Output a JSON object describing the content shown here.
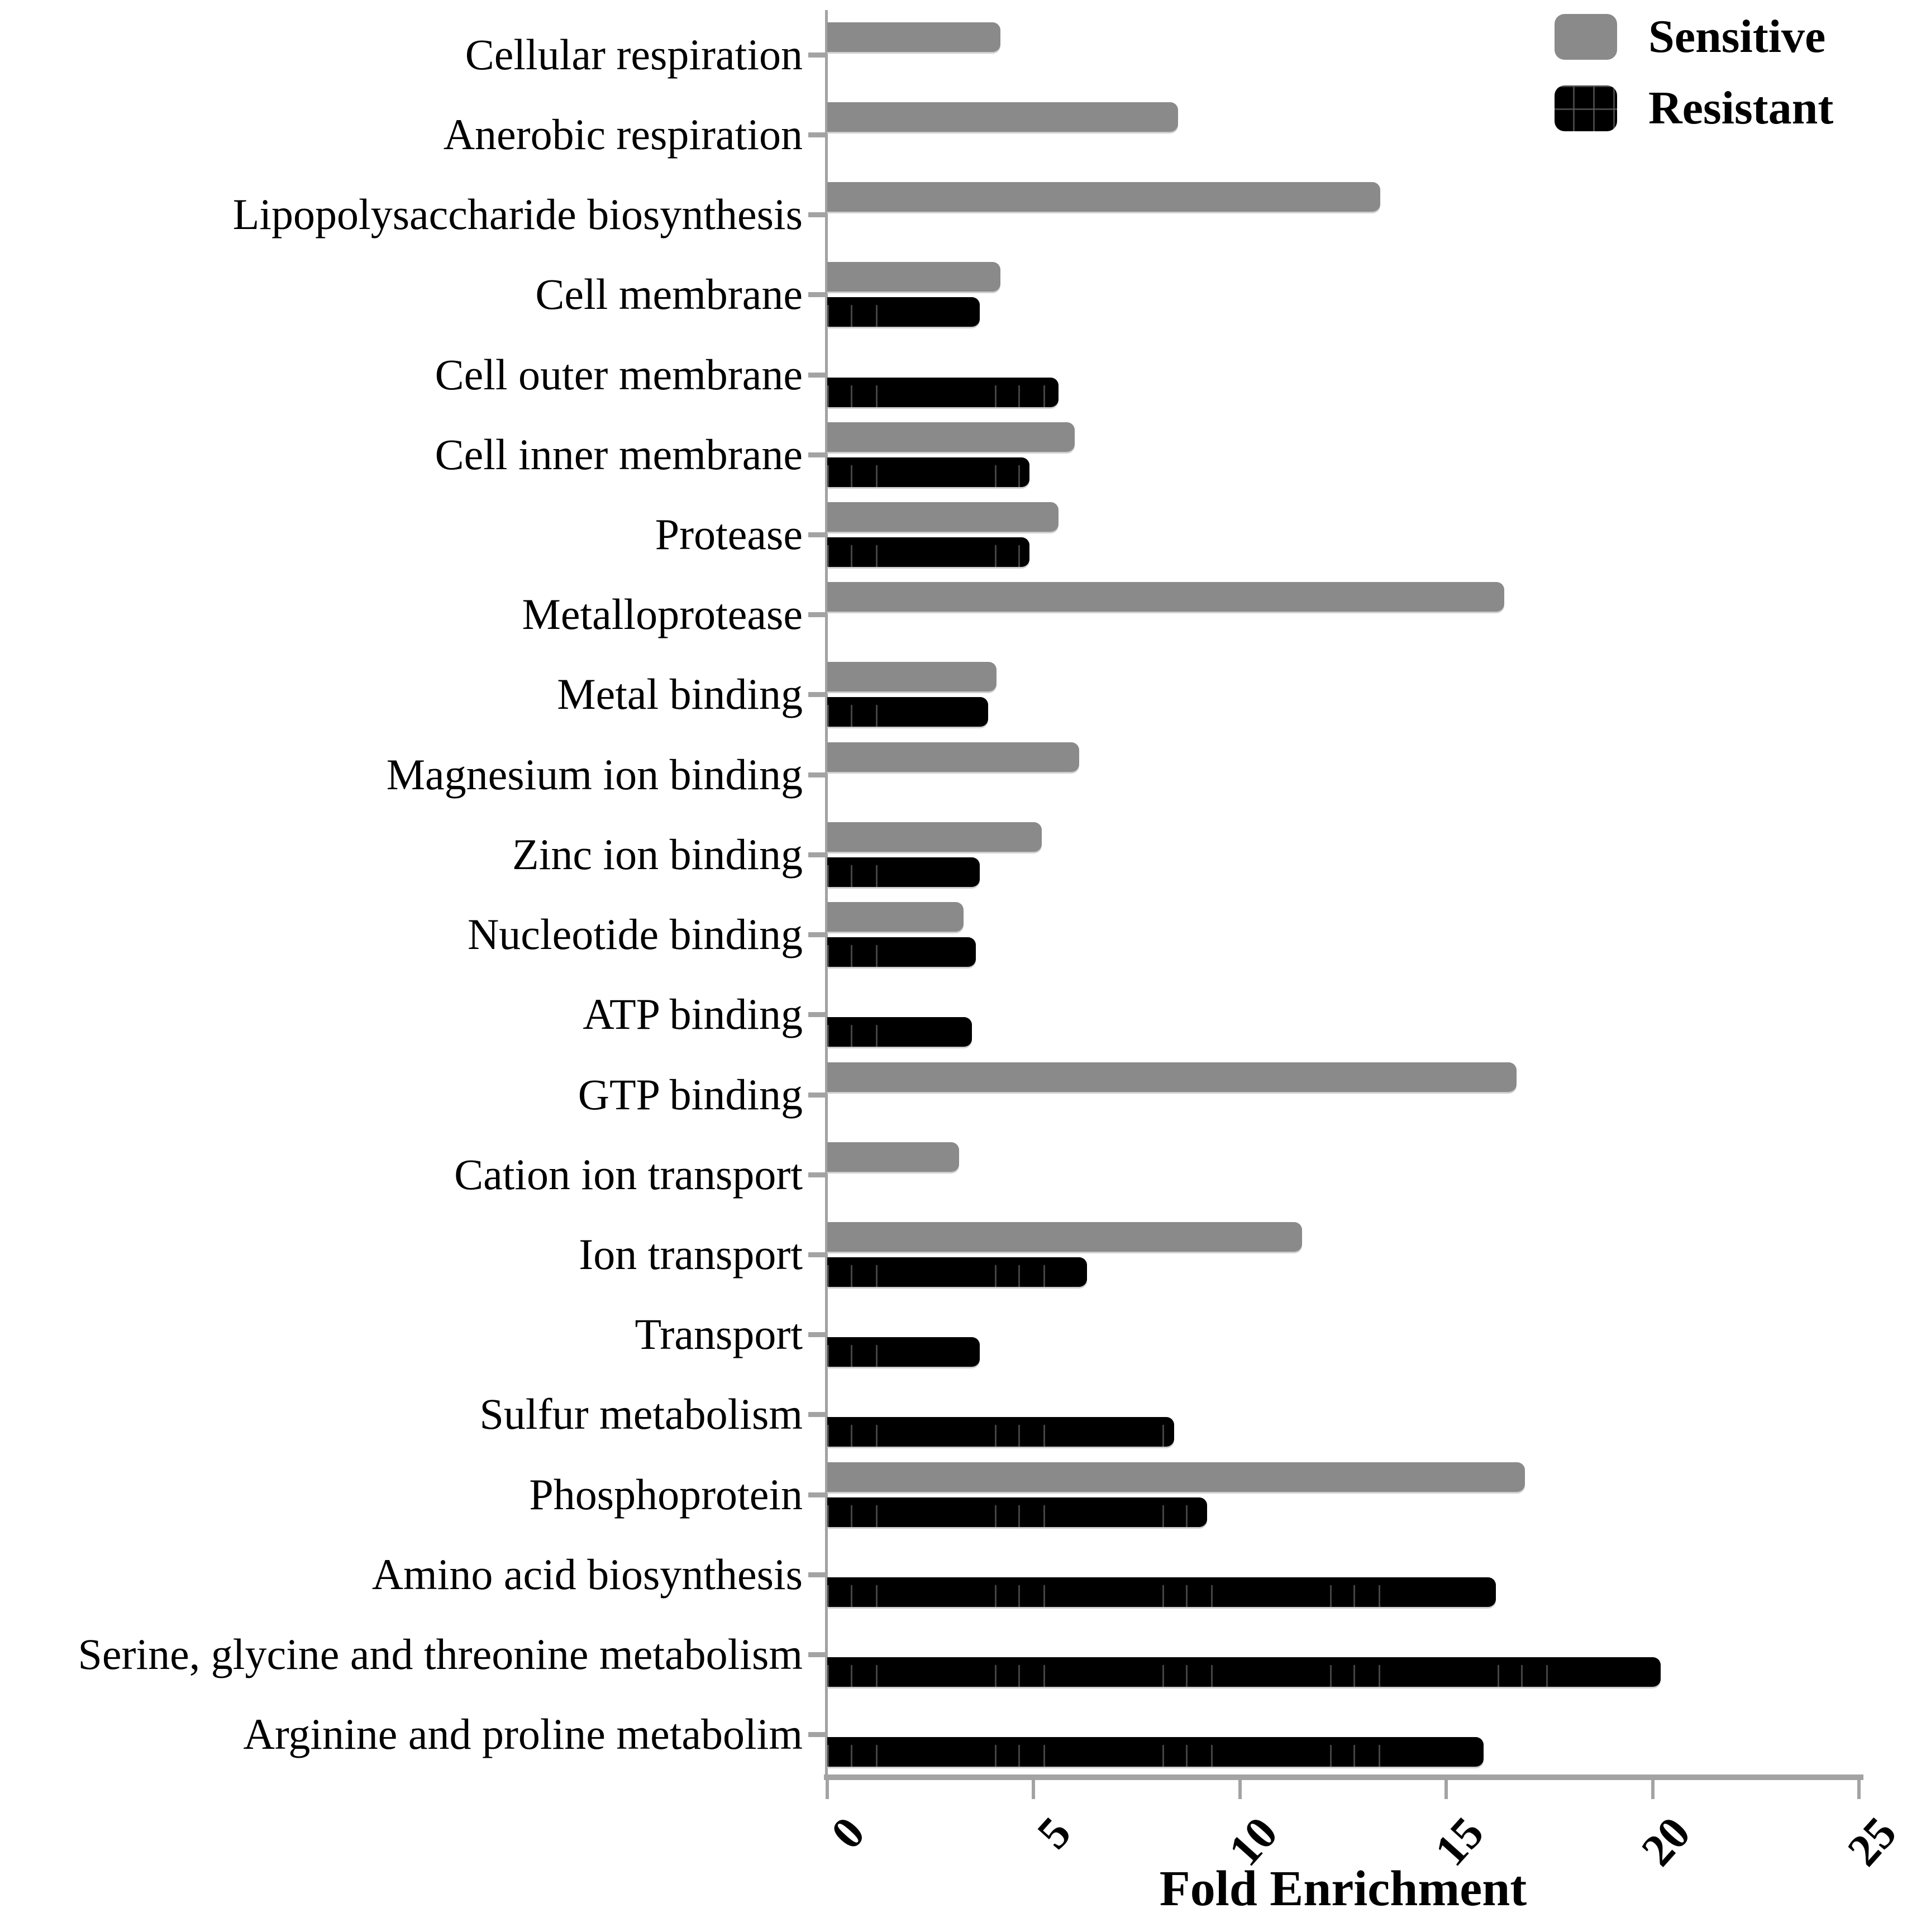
{
  "chart_data": {
    "type": "bar",
    "orientation": "horizontal",
    "title": "",
    "xlabel": "Fold Enrichment",
    "ylabel": "",
    "xlim": [
      0,
      25
    ],
    "xticks": [
      0,
      5,
      10,
      15,
      20,
      25
    ],
    "grid": false,
    "legend_position": "top-right",
    "categories": [
      "Cellular respiration",
      "Anerobic respiration",
      "Lipopolysaccharide biosynthesis",
      "Cell membrane",
      "Cell outer membrane",
      "Cell inner membrane",
      "Protease",
      "Metalloprotease",
      "Metal binding",
      "Magnesium ion binding",
      "Zinc ion binding",
      "Nucleotide binding",
      "ATP binding",
      "GTP binding",
      "Cation ion transport",
      "Ion transport",
      "Transport",
      "Sulfur metabolism",
      "Phosphoprotein",
      "Amino acid biosynthesis",
      "Serine, glycine and threonine metabolism",
      "Arginine and proline metabolim"
    ],
    "series": [
      {
        "name": "Sensitive",
        "color": "#8a8a8a",
        "values": [
          4.2,
          8.5,
          13.4,
          4.2,
          null,
          6.0,
          5.6,
          16.4,
          4.1,
          6.1,
          5.2,
          3.3,
          null,
          16.7,
          3.2,
          11.5,
          null,
          null,
          16.9,
          null,
          null,
          null
        ]
      },
      {
        "name": "Resistant",
        "color": "#000000",
        "values": [
          null,
          null,
          null,
          3.7,
          5.6,
          4.9,
          4.9,
          null,
          3.9,
          null,
          3.7,
          3.6,
          3.5,
          null,
          null,
          6.3,
          3.7,
          8.4,
          9.2,
          16.2,
          20.2,
          15.9
        ]
      }
    ]
  },
  "colors": {
    "axis": "#a3a3a3",
    "text": "#000000",
    "background": "#ffffff"
  }
}
